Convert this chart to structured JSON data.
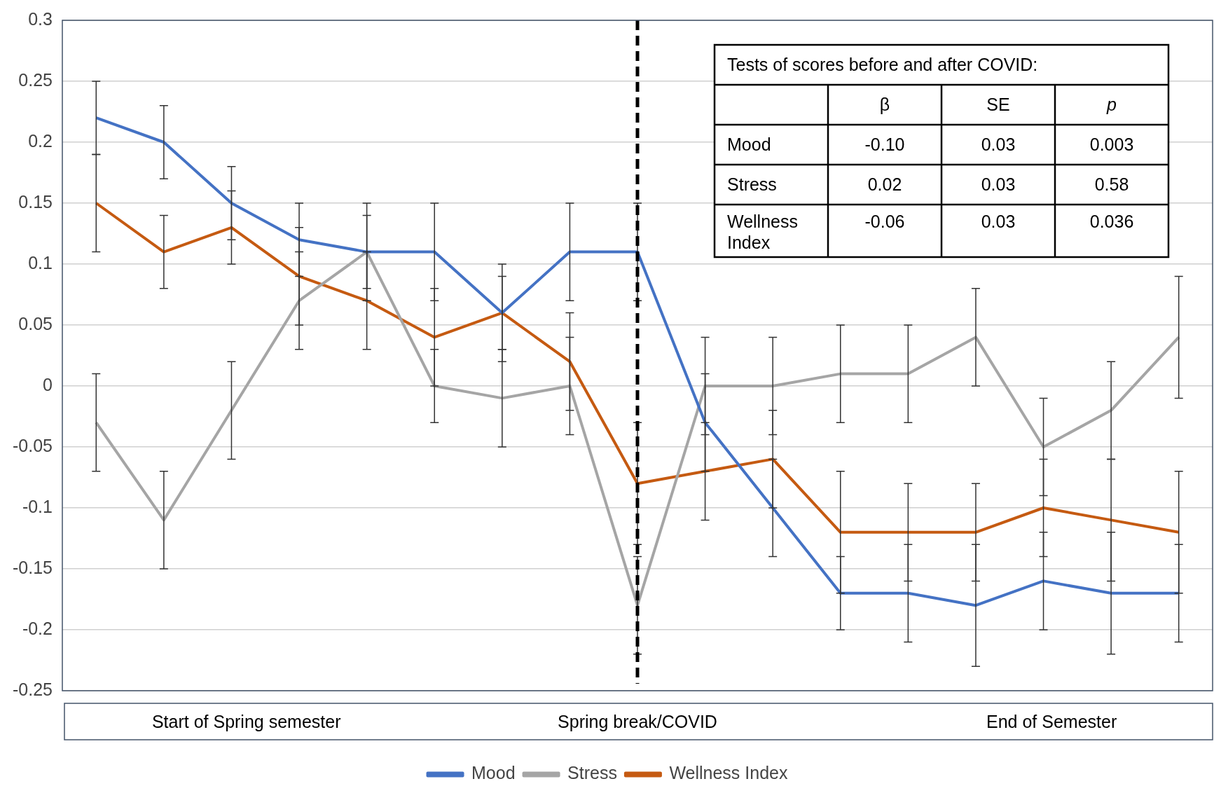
{
  "chart_data": {
    "type": "line",
    "categories": [
      null,
      null,
      null,
      null,
      null,
      null,
      null,
      null,
      null,
      null,
      null,
      null,
      null,
      null,
      null,
      null,
      null
    ],
    "tick_labels": "y",
    "ylim": [
      -0.25,
      0.3
    ],
    "yticks": [
      -0.25,
      -0.2,
      -0.15,
      -0.1,
      -0.05,
      0,
      0.05,
      0.1,
      0.15,
      0.2,
      0.25,
      0.3
    ],
    "grid": "y",
    "legend": "bottom",
    "marker": "none",
    "line_style": "solid",
    "series": [
      {
        "name": "Mood",
        "color": "#4472c4",
        "values": [
          0.22,
          0.2,
          0.15,
          0.12,
          0.11,
          0.11,
          0.06,
          0.11,
          0.11,
          -0.03,
          -0.1,
          -0.17,
          -0.17,
          -0.18,
          -0.16,
          -0.17,
          -0.17
        ],
        "errors": [
          0.03,
          0.03,
          0.03,
          0.03,
          0.04,
          0.04,
          0.04,
          0.04,
          0.04,
          0.04,
          0.04,
          0.03,
          0.04,
          0.05,
          0.04,
          0.05,
          0.04
        ]
      },
      {
        "name": "Stress",
        "color": "#a5a5a5",
        "values": [
          -0.03,
          -0.11,
          -0.02,
          0.07,
          0.11,
          0.0,
          -0.01,
          0.0,
          -0.18,
          0.0,
          0.0,
          0.01,
          0.01,
          0.04,
          -0.05,
          -0.02,
          0.04
        ],
        "errors": [
          0.04,
          0.04,
          0.04,
          0.04,
          0.03,
          0.03,
          0.04,
          0.04,
          0.04,
          0.04,
          0.04,
          0.04,
          0.04,
          0.04,
          0.04,
          0.04,
          0.05
        ]
      },
      {
        "name": "Wellness Index",
        "color": "#c55a11",
        "values": [
          0.15,
          0.11,
          0.13,
          0.09,
          0.07,
          0.04,
          0.06,
          0.02,
          -0.08,
          -0.07,
          -0.06,
          -0.12,
          -0.12,
          -0.12,
          -0.1,
          -0.11,
          -0.12
        ],
        "errors": [
          0.04,
          0.03,
          0.03,
          0.04,
          0.04,
          0.04,
          0.03,
          0.04,
          0.05,
          0.04,
          0.04,
          0.05,
          0.04,
          0.04,
          0.04,
          0.05,
          0.05
        ]
      }
    ],
    "annotations": [
      "Start of Spring semester",
      "Spring break/COVID",
      "End of Semester",
      "Tests of scores before and after COVID:",
      "β",
      "SE",
      "p",
      "Mood",
      "-0.10",
      "0.03",
      "0.003",
      "Stress",
      "0.02",
      "0.03",
      "0.58",
      "Wellness Index",
      "-0.06",
      "0.03",
      "0.036"
    ]
  }
}
